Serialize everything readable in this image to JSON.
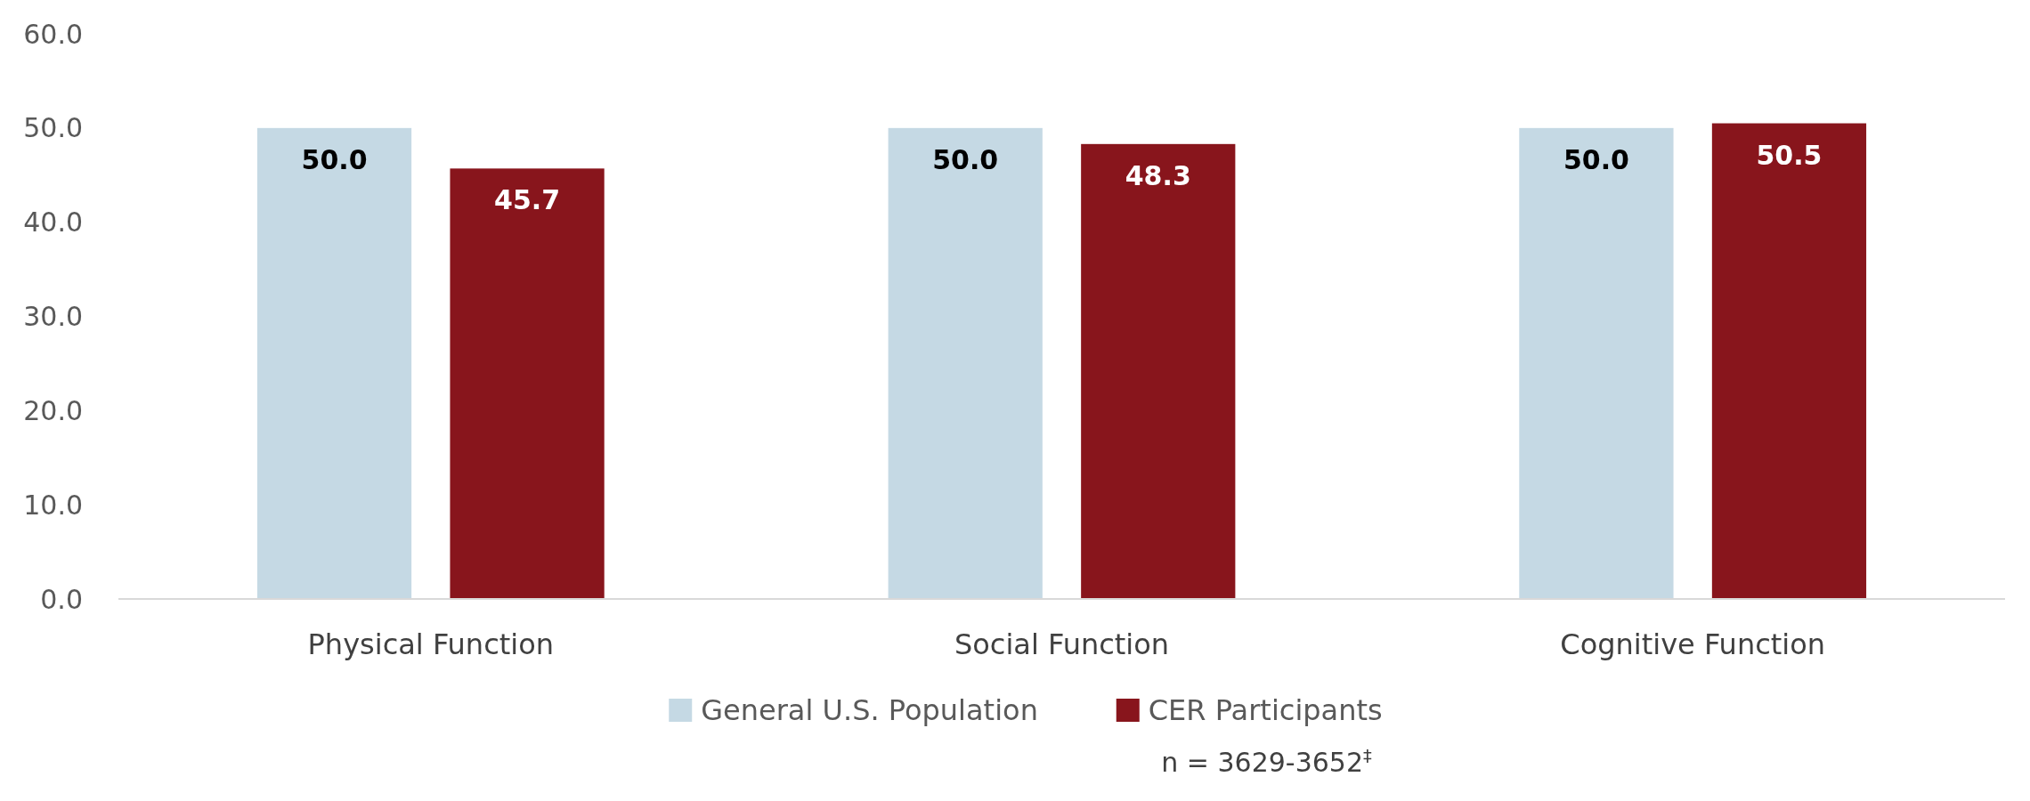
{
  "chart_data": {
    "type": "bar",
    "categories": [
      "Physical Function",
      "Social Function",
      "Cognitive Function"
    ],
    "series": [
      {
        "name": "General U.S. Population",
        "color": "#c5d9e4",
        "values": [
          50.0,
          50.0,
          50.0
        ],
        "value_labels": [
          "50.0",
          "50.0",
          "50.0"
        ]
      },
      {
        "name": "CER Participants",
        "color": "#88151c",
        "values": [
          45.7,
          48.3,
          50.5
        ],
        "value_labels": [
          "45.7",
          "48.3",
          "50.5"
        ]
      }
    ],
    "ylim": [
      0,
      60
    ],
    "yticks": [
      {
        "value": 0,
        "label": "0.0"
      },
      {
        "value": 10,
        "label": "10.0"
      },
      {
        "value": 20,
        "label": "20.0"
      },
      {
        "value": 30,
        "label": "30.0"
      },
      {
        "value": 40,
        "label": "40.0"
      },
      {
        "value": 50,
        "label": "50.0"
      },
      {
        "value": 60,
        "label": "60.0"
      }
    ],
    "legend": "bottom",
    "annotations": [
      "n = 3629-3652$^{‡}$"
    ]
  }
}
